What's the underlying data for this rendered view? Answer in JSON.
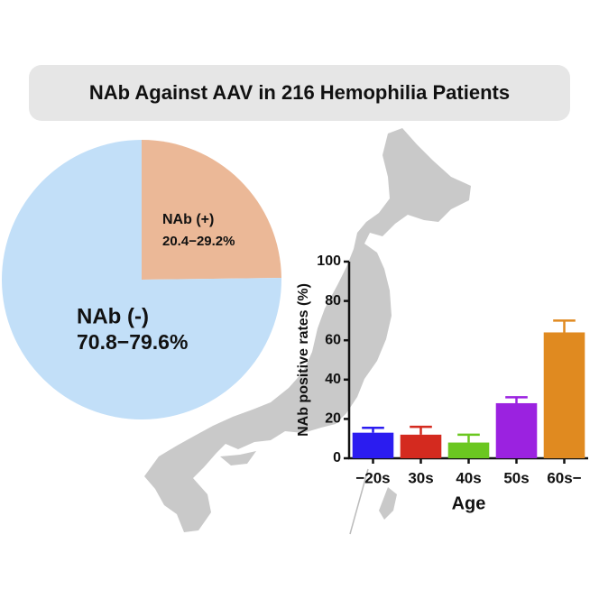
{
  "header": {
    "title": "NAb Against AAV in 216 Hemophilia Patients"
  },
  "chart_data": [
    {
      "type": "pie",
      "categories": [
        "NAb  (+)",
        "NAb  (-)"
      ],
      "values": [
        24.8,
        75.2
      ],
      "range_labels": [
        "20.4−29.2%",
        "70.8−79.6%"
      ],
      "colors": [
        "#ebb897",
        "#c2dff8"
      ]
    },
    {
      "type": "bar",
      "categories": [
        "−20s",
        "30s",
        "40s",
        "50s",
        "60s−"
      ],
      "values": [
        13,
        12,
        8,
        28,
        64
      ],
      "errors": [
        2.5,
        4,
        4,
        3,
        6
      ],
      "colors": [
        "#2b1cf0",
        "#d42a1f",
        "#6bc720",
        "#9b22e0",
        "#e08a20"
      ],
      "ylim": [
        0,
        100
      ],
      "yticks": [
        0,
        20,
        40,
        60,
        80,
        100
      ],
      "y_label": "NAb positive rates (%)",
      "x_label": "Age"
    }
  ]
}
